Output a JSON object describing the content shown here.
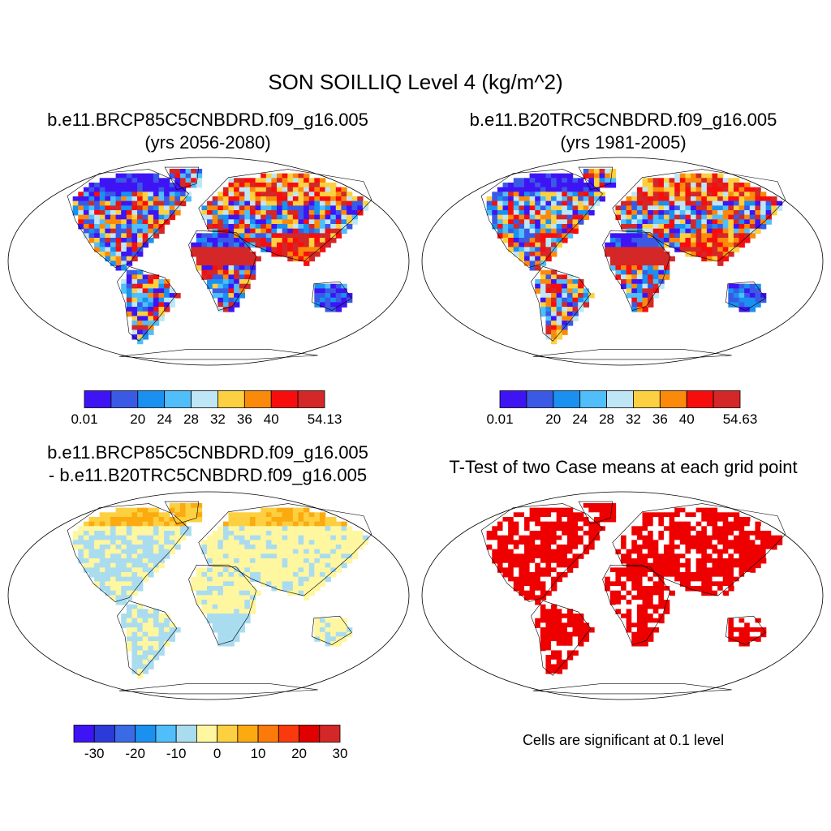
{
  "figure": {
    "title": "SON SOILLIQ Level 4 (kg/m^2)"
  },
  "panels": [
    {
      "id": "case1",
      "title_line1": "b.e11.BRCP85C5CNBDRD.f09_g16.005",
      "title_line2": "(yrs 2056-2080)",
      "style": "mean"
    },
    {
      "id": "case2",
      "title_line1": "b.e11.B20TRC5CNBDRD.f09_g16.005",
      "title_line2": "(yrs 1981-2005)",
      "style": "mean"
    },
    {
      "id": "diff",
      "title_line1": "b.e11.BRCP85C5CNBDRD.f09_g16.005",
      "title_line2": "- b.e11.B20TRC5CNBDRD.f09_g16.005",
      "style": "diff"
    },
    {
      "id": "ttest",
      "title_line1": "T-Test of two Case means at each grid point",
      "title_line2": "",
      "style": "ttest"
    }
  ],
  "colorbars": [
    {
      "id": "cb1",
      "colors": [
        "#3e14f5",
        "#3a5ae6",
        "#1a90f0",
        "#50befa",
        "#bfe6f5",
        "#fcd040",
        "#fb8a0a",
        "#f80d0d",
        "#d42727"
      ],
      "labels": [
        "0.01",
        "20",
        "24",
        "28",
        "32",
        "36",
        "40",
        "54.13"
      ]
    },
    {
      "id": "cb2",
      "colors": [
        "#3e14f5",
        "#3a5ae6",
        "#1a90f0",
        "#50befa",
        "#bfe6f5",
        "#fcd040",
        "#fb8a0a",
        "#f80d0d",
        "#d42727"
      ],
      "labels": [
        "0.01",
        "20",
        "24",
        "28",
        "32",
        "36",
        "40",
        "54.63"
      ]
    },
    {
      "id": "cb3",
      "colors": [
        "#3e14f5",
        "#2b3ad8",
        "#3a6ae6",
        "#1a90f0",
        "#50befa",
        "#aadcf0",
        "#fff6a0",
        "#fcd040",
        "#fbaa10",
        "#fb7a0a",
        "#f83a0d",
        "#e00000",
        "#d42727"
      ],
      "labels": [
        "-30",
        "-20",
        "-10",
        "0",
        "10",
        "20",
        "30"
      ]
    }
  ],
  "ttest_note": "Cells are significant at 0.1 level",
  "palette": {
    "dry": "#3e14f5",
    "wet": "#d42727",
    "significant": "#ee0000",
    "diff_positive": "#fcd040",
    "diff_slight": "#fff6a0",
    "diff_negative": "#aadcf0"
  }
}
